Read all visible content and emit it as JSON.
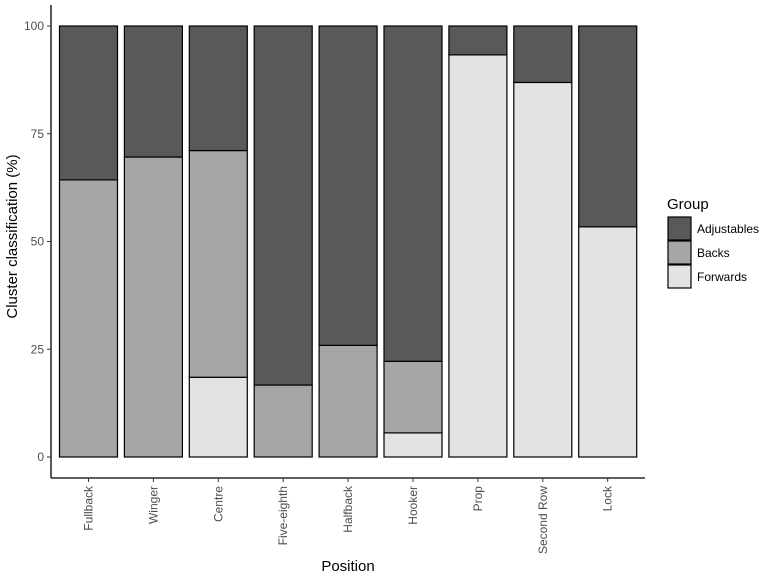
{
  "chart_data": {
    "type": "bar",
    "stacked": true,
    "categories": [
      "Fullback",
      "Winger",
      "Centre",
      "Five-eighth",
      "Halfback",
      "Hooker",
      "Prop",
      "Second Row",
      "Lock"
    ],
    "series": [
      {
        "name": "Forwards",
        "color": "#e3e3e3",
        "values": [
          0,
          0,
          18.5,
          0,
          0,
          5.6,
          93.3,
          86.9,
          53.4
        ]
      },
      {
        "name": "Backs",
        "color": "#a6a6a6",
        "values": [
          64.3,
          69.6,
          52.6,
          16.7,
          25.9,
          16.6,
          0,
          0,
          0
        ]
      },
      {
        "name": "Adjustables",
        "color": "#595959",
        "values": [
          35.7,
          30.4,
          28.9,
          83.3,
          74.1,
          77.8,
          6.7,
          13.1,
          46.6
        ]
      }
    ],
    "xlabel": "Position",
    "ylabel": "Cluster classification (%)",
    "ylim": [
      0,
      100
    ],
    "yticks": [
      0,
      25,
      50,
      75,
      100
    ],
    "grid": false,
    "legend": {
      "title": "Group",
      "placement": "right",
      "entries": [
        "Adjustables",
        "Backs",
        "Forwards"
      ]
    }
  }
}
